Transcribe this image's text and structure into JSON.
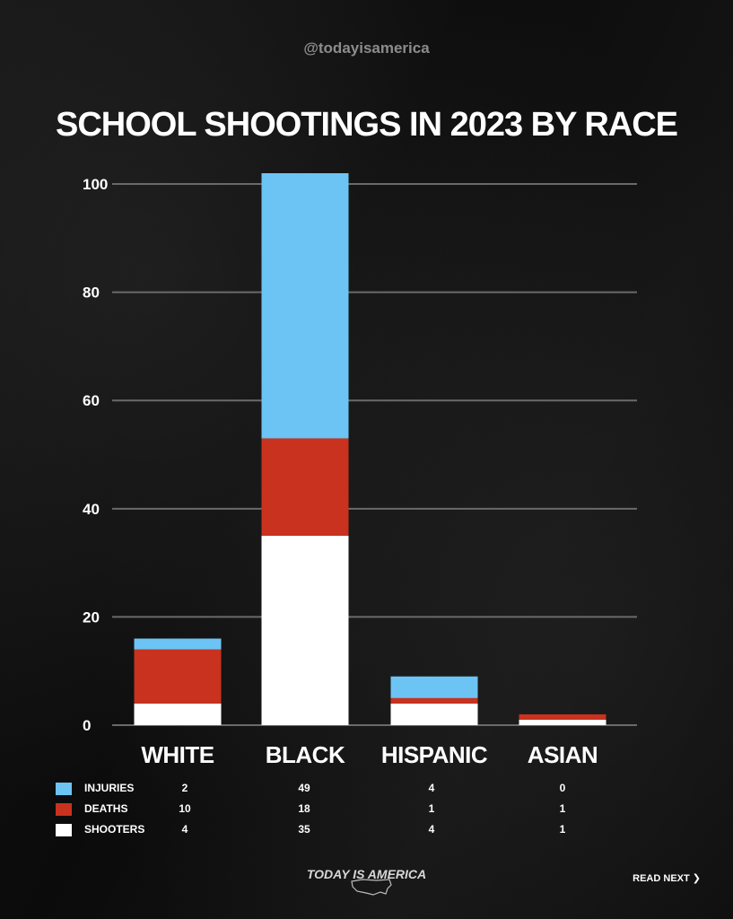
{
  "header": {
    "handle": "@todayisamerica",
    "title": "SCHOOL SHOOTINGS IN 2023 BY RACE"
  },
  "colors": {
    "injuries": "#6cc4f4",
    "deaths": "#c8321f",
    "shooters": "#ffffff",
    "grid": "#6a6a6a",
    "background": "#0e0e0e"
  },
  "chart_data": {
    "type": "bar",
    "stacked": true,
    "categories": [
      "WHITE",
      "BLACK",
      "HISPANIC",
      "ASIAN"
    ],
    "series": [
      {
        "name": "SHOOTERS",
        "values": [
          4,
          35,
          4,
          1
        ]
      },
      {
        "name": "DEATHS",
        "values": [
          10,
          18,
          1,
          1
        ]
      },
      {
        "name": "INJURIES",
        "values": [
          2,
          49,
          4,
          0
        ]
      }
    ],
    "yticks": [
      "0",
      "20",
      "40",
      "60",
      "80",
      "100"
    ],
    "ylim": [
      0,
      102
    ],
    "grid": true
  },
  "legend": {
    "rows": [
      {
        "label": "INJURIES",
        "color": "#6cc4f4",
        "values": [
          "2",
          "49",
          "4",
          "0"
        ]
      },
      {
        "label": "DEATHS",
        "color": "#c8321f",
        "values": [
          "10",
          "18",
          "1",
          "1"
        ]
      },
      {
        "label": "SHOOTERS",
        "color": "#ffffff",
        "values": [
          "4",
          "35",
          "4",
          "1"
        ]
      }
    ]
  },
  "footer": {
    "logo_text": "TODAY IS AMERICA",
    "logo_icon": "usa-map-icon",
    "read_next": "READ NEXT ❯"
  }
}
